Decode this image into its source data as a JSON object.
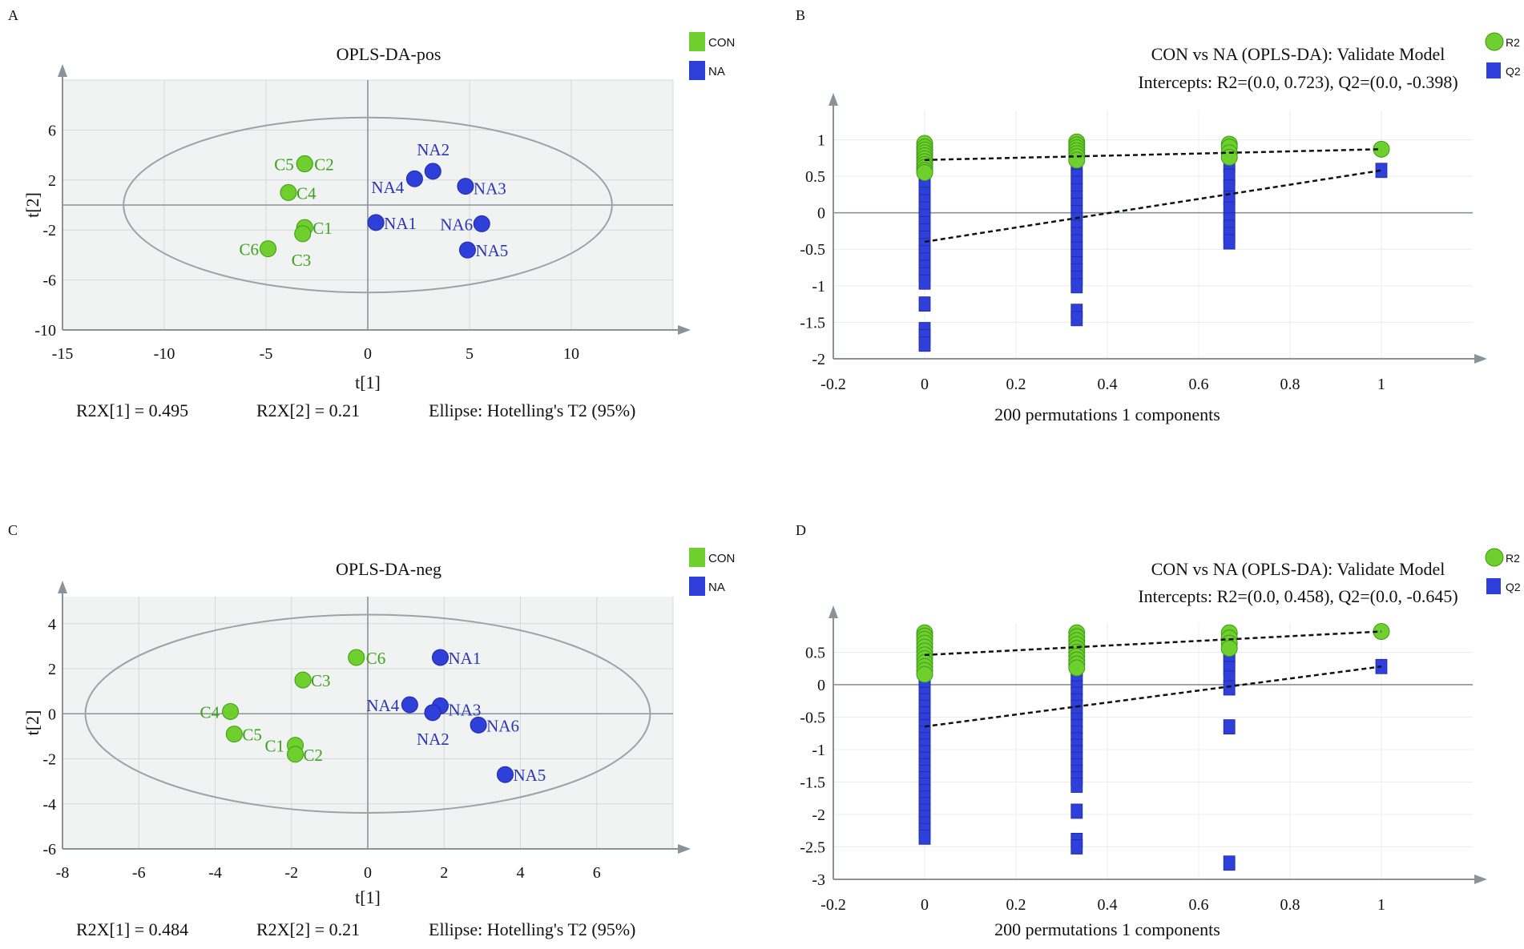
{
  "chart_data": [
    {
      "panel": "A",
      "type": "scatter",
      "title": "OPLS-DA-pos",
      "xlabel": "t[1]",
      "ylabel": "t[2]",
      "xlim": [
        -15,
        15
      ],
      "ylim": [
        -10,
        10
      ],
      "xticks": [
        -15,
        -10,
        -5,
        0,
        5,
        10
      ],
      "yticks": [
        -10,
        -6,
        -2,
        2,
        6
      ],
      "grid": true,
      "legend_position": "top-right",
      "ellipse_label": "Ellipse: Hotelling's T2 (95%)",
      "ellipse": {
        "cx": 0,
        "cy": 0,
        "rx": 12,
        "ry": 7
      },
      "footer": [
        "R2X[1] = 0.495",
        "R2X[2] = 0.21",
        "Ellipse: Hotelling's T2 (95%)"
      ],
      "series": [
        {
          "name": "CON",
          "color": "#6fcf2f",
          "points": [
            {
              "label": "C5",
              "x": -3.1,
              "y": 3.3
            },
            {
              "label": "C2",
              "x": -3.1,
              "y": 3.3
            },
            {
              "label": "C4",
              "x": -3.9,
              "y": 1.0
            },
            {
              "label": "C1",
              "x": -3.1,
              "y": -1.8
            },
            {
              "label": "C3",
              "x": -3.2,
              "y": -2.3
            },
            {
              "label": "C6",
              "x": -4.9,
              "y": -3.5
            }
          ]
        },
        {
          "name": "NA",
          "color": "#2f3fd9",
          "points": [
            {
              "label": "NA2",
              "x": 3.2,
              "y": 2.7
            },
            {
              "label": "NA4",
              "x": 2.3,
              "y": 2.1
            },
            {
              "label": "NA3",
              "x": 4.8,
              "y": 1.5
            },
            {
              "label": "NA1",
              "x": 0.4,
              "y": -1.4
            },
            {
              "label": "NA6",
              "x": 5.6,
              "y": -1.5
            },
            {
              "label": "NA5",
              "x": 4.9,
              "y": -3.6
            }
          ]
        }
      ]
    },
    {
      "panel": "B",
      "type": "scatter",
      "title": "CON vs NA (OPLS-DA): Validate Model",
      "subtitle": "Intercepts: R2=(0.0, 0.723), Q2=(0.0, -0.398)",
      "xlabel": "200 permutations 1 components",
      "xlim": [
        -0.2,
        1.2
      ],
      "ylim": [
        -2,
        1.4
      ],
      "xticks": [
        "-0.2",
        "0",
        "0.2",
        "0.4",
        "0.6",
        "0.8",
        "1"
      ],
      "yticks": [
        "-2",
        "-1.5",
        "-1",
        "-0.5",
        "0",
        "0.5",
        "1"
      ],
      "legend_position": "top-right",
      "series": [
        {
          "name": "R2",
          "color": "#6fcf2f",
          "marker": "circle",
          "x_groups": [
            {
              "x": 0,
              "values": [
                0.95,
                0.9,
                0.86,
                0.82,
                0.78,
                0.74,
                0.7,
                0.66,
                0.62,
                0.58,
                0.55
              ]
            },
            {
              "x": 0.333,
              "values": [
                0.97,
                0.93,
                0.89,
                0.85,
                0.81,
                0.77,
                0.72
              ]
            },
            {
              "x": 0.667,
              "values": [
                0.94,
                0.9,
                0.82,
                0.76
              ]
            },
            {
              "x": 1,
              "values": [
                0.87
              ]
            }
          ],
          "regression": {
            "x0": 0,
            "y0": 0.723,
            "x1": 1,
            "y1": 0.87
          }
        },
        {
          "name": "Q2",
          "color": "#2f3fd9",
          "marker": "square",
          "x_groups": [
            {
              "x": 0,
              "values": [
                0.55,
                0.45,
                0.35,
                0.25,
                0.15,
                0.05,
                -0.05,
                -0.15,
                -0.25,
                -0.35,
                -0.45,
                -0.55,
                -0.65,
                -0.75,
                -0.85,
                -0.95,
                -1.25,
                -1.6,
                -1.7,
                -1.8
              ]
            },
            {
              "x": 0.333,
              "values": [
                0.6,
                0.5,
                0.4,
                0.3,
                0.2,
                0.1,
                0.0,
                -0.1,
                -0.2,
                -0.3,
                -0.4,
                -0.5,
                -0.6,
                -0.7,
                -0.8,
                -0.9,
                -1.0,
                -1.35,
                -1.45
              ]
            },
            {
              "x": 0.667,
              "values": [
                0.65,
                0.5,
                0.35,
                0.2,
                0.05,
                -0.1,
                -0.2,
                -0.3,
                -0.4
              ]
            },
            {
              "x": 1,
              "values": [
                0.58
              ]
            }
          ],
          "regression": {
            "x0": 0,
            "y0": -0.398,
            "x1": 1,
            "y1": 0.58
          }
        }
      ]
    },
    {
      "panel": "C",
      "type": "scatter",
      "title": "OPLS-DA-neg",
      "xlabel": "t[1]",
      "ylabel": "t[2]",
      "xlim": [
        -8,
        8
      ],
      "ylim": [
        -6,
        5.2
      ],
      "xticks": [
        -8,
        -6,
        -4,
        -2,
        0,
        2,
        4,
        6
      ],
      "yticks": [
        -6,
        -4,
        -2,
        0,
        2,
        4
      ],
      "grid": true,
      "legend_position": "top-right",
      "ellipse": {
        "cx": 0,
        "cy": 0,
        "rx": 7.4,
        "ry": 4.4
      },
      "footer": [
        "R2X[1] = 0.484",
        "R2X[2] = 0.21",
        "Ellipse: Hotelling's T2 (95%)"
      ],
      "series": [
        {
          "name": "CON",
          "color": "#6fcf2f",
          "points": [
            {
              "label": "C6",
              "x": -0.3,
              "y": 2.5
            },
            {
              "label": "C3",
              "x": -1.7,
              "y": 1.5
            },
            {
              "label": "C4",
              "x": -3.6,
              "y": 0.1
            },
            {
              "label": "C5",
              "x": -3.5,
              "y": -0.9
            },
            {
              "label": "C1",
              "x": -1.9,
              "y": -1.4
            },
            {
              "label": "C2",
              "x": -1.9,
              "y": -1.8
            }
          ]
        },
        {
          "name": "NA",
          "color": "#2f3fd9",
          "points": [
            {
              "label": "NA1",
              "x": 1.9,
              "y": 2.5
            },
            {
              "label": "NA4",
              "x": 1.1,
              "y": 0.4
            },
            {
              "label": "NA3",
              "x": 1.9,
              "y": 0.35
            },
            {
              "label": "NA2",
              "x": 1.7,
              "y": 0.05
            },
            {
              "label": "NA6",
              "x": 2.9,
              "y": -0.5
            },
            {
              "label": "NA5",
              "x": 3.6,
              "y": -2.7
            }
          ]
        }
      ]
    },
    {
      "panel": "D",
      "type": "scatter",
      "title": "CON vs NA (OPLS-DA): Validate Model",
      "subtitle": "Intercepts: R2=(0.0, 0.458), Q2=(0.0, -0.645)",
      "xlabel": "200 permutations 1 components",
      "xlim": [
        -0.2,
        1.2
      ],
      "ylim": [
        -3,
        0.95
      ],
      "xticks": [
        "-0.2",
        "0",
        "0.2",
        "0.4",
        "0.6",
        "0.8",
        "1"
      ],
      "yticks": [
        "-3",
        "-2.5",
        "-2",
        "-1.5",
        "-1",
        "-0.5",
        "0",
        "0.5"
      ],
      "legend_position": "top-right",
      "series": [
        {
          "name": "R2",
          "color": "#6fcf2f",
          "marker": "circle",
          "x_groups": [
            {
              "x": 0,
              "values": [
                0.8,
                0.75,
                0.7,
                0.64,
                0.58,
                0.52,
                0.46,
                0.4,
                0.34,
                0.28,
                0.22,
                0.16
              ]
            },
            {
              "x": 0.333,
              "values": [
                0.8,
                0.74,
                0.68,
                0.62,
                0.56,
                0.5,
                0.44,
                0.38,
                0.32,
                0.26
              ]
            },
            {
              "x": 0.667,
              "values": [
                0.8,
                0.72,
                0.64,
                0.56
              ]
            },
            {
              "x": 1,
              "values": [
                0.82
              ]
            }
          ],
          "regression": {
            "x0": 0,
            "y0": 0.458,
            "x1": 1,
            "y1": 0.82
          }
        },
        {
          "name": "Q2",
          "color": "#2f3fd9",
          "marker": "square",
          "x_groups": [
            {
              "x": 0,
              "values": [
                0.65,
                0.55,
                0.45,
                0.35,
                0.25,
                0.15,
                0.05,
                -0.05,
                -0.15,
                -0.25,
                -0.35,
                -0.45,
                -0.55,
                -0.65,
                -0.75,
                -0.85,
                -0.95,
                -1.05,
                -1.15,
                -1.25,
                -1.35,
                -1.45,
                -1.55,
                -1.65,
                -1.75,
                -1.85,
                -1.95,
                -2.05,
                -2.15,
                -2.25,
                -2.35
              ]
            },
            {
              "x": 0.333,
              "values": [
                0.75,
                0.65,
                0.55,
                0.45,
                0.35,
                0.25,
                0.15,
                0.05,
                -0.05,
                -0.15,
                -0.25,
                -0.35,
                -0.45,
                -0.55,
                -0.65,
                -0.75,
                -0.85,
                -0.95,
                -1.05,
                -1.15,
                -1.25,
                -1.35,
                -1.45,
                -1.55,
                -1.95,
                -2.4,
                -2.5
              ]
            },
            {
              "x": 0.667,
              "values": [
                0.45,
                0.35,
                0.25,
                0.1,
                -0.05,
                -0.65,
                -2.75
              ]
            },
            {
              "x": 1,
              "values": [
                0.28
              ]
            }
          ],
          "regression": {
            "x0": 0,
            "y0": -0.645,
            "x1": 1,
            "y1": 0.28
          }
        }
      ]
    }
  ]
}
